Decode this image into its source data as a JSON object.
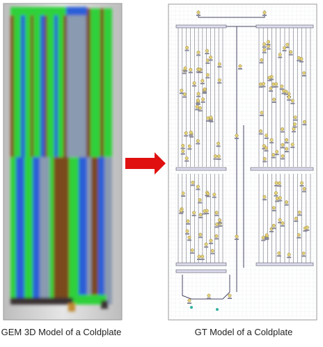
{
  "left_caption": "GEM 3D Model of a Coldplate",
  "right_caption": "GT Model of a Coldplate"
}
